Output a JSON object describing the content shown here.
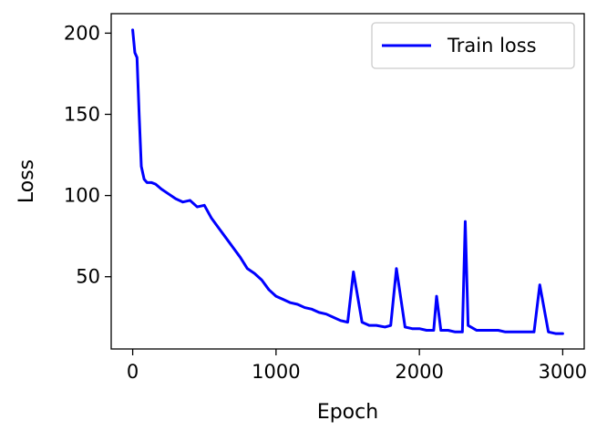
{
  "chart_data": {
    "type": "line",
    "xlabel": "Epoch",
    "ylabel": "Loss",
    "xlim": [
      -150,
      3150
    ],
    "ylim": [
      5.5,
      212
    ],
    "xticks": [
      0,
      1000,
      2000,
      3000
    ],
    "yticks": [
      50,
      100,
      150,
      200
    ],
    "grid": false,
    "legend_position": "top-right",
    "series": [
      {
        "name": "Train loss",
        "color": "#0000ff",
        "x": [
          0,
          15,
          30,
          45,
          60,
          80,
          100,
          130,
          160,
          200,
          250,
          300,
          350,
          400,
          450,
          500,
          550,
          600,
          650,
          700,
          750,
          800,
          850,
          900,
          950,
          1000,
          1050,
          1100,
          1150,
          1200,
          1250,
          1300,
          1350,
          1400,
          1450,
          1500,
          1540,
          1600,
          1650,
          1700,
          1760,
          1800,
          1840,
          1900,
          1950,
          2000,
          2050,
          2100,
          2120,
          2150,
          2200,
          2250,
          2300,
          2320,
          2340,
          2400,
          2450,
          2500,
          2550,
          2600,
          2650,
          2700,
          2760,
          2800,
          2840,
          2900,
          2950,
          3000
        ],
        "y": [
          202,
          188,
          185,
          150,
          118,
          110,
          108,
          108,
          107,
          104,
          101,
          98,
          96,
          97,
          93,
          94,
          86,
          80,
          74,
          68,
          62,
          55,
          52,
          48,
          42,
          38,
          36,
          34,
          33,
          31,
          30,
          28,
          27,
          25,
          23,
          22,
          53,
          22,
          20,
          20,
          19,
          20,
          55,
          19,
          18,
          18,
          17,
          17,
          38,
          17,
          17,
          16,
          16,
          84,
          20,
          17,
          17,
          17,
          17,
          16,
          16,
          16,
          16,
          16,
          45,
          16,
          15,
          15
        ]
      }
    ]
  }
}
